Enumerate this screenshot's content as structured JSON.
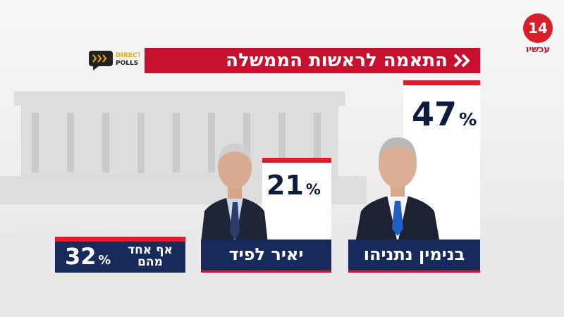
{
  "header": {
    "title": "התאמה לראשות הממשלה",
    "channel_number": "14",
    "channel_name": "עכשיו",
    "pollster_line1": "DIRECT",
    "pollster_line2": "POLLS"
  },
  "poll": {
    "unit": "%",
    "options": [
      {
        "name": "בנימין נתניהו",
        "percent": 47
      },
      {
        "name": "יאיר לפיד",
        "percent": 21
      },
      {
        "name": "אף אחד מהם",
        "percent": 32
      }
    ]
  }
}
